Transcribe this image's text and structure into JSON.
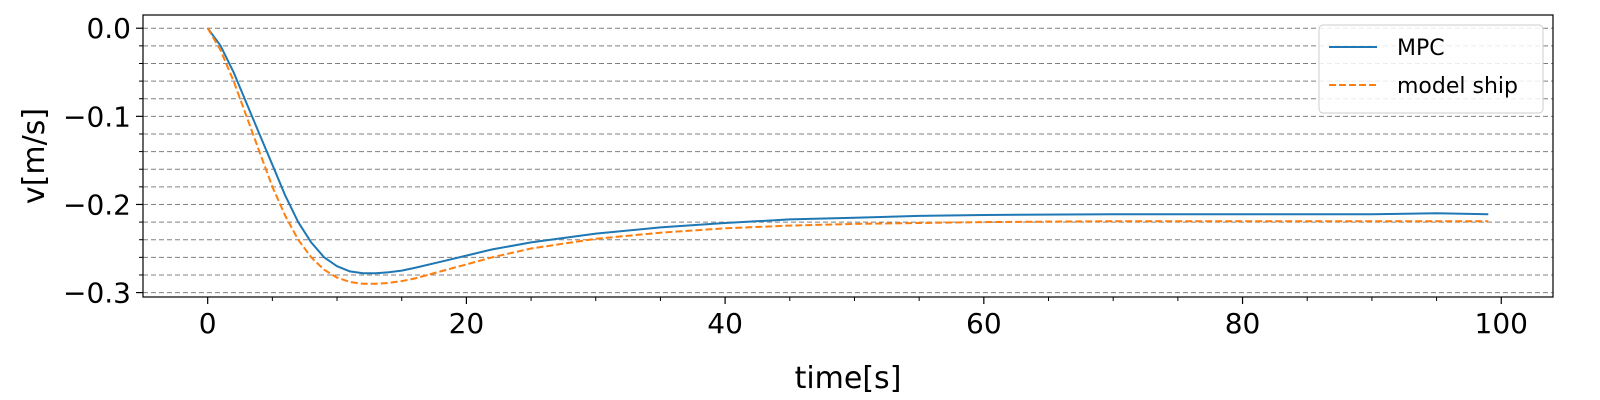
{
  "chart_data": {
    "type": "line",
    "title": "",
    "xlabel": "time[s]",
    "ylabel": "v[m/s]",
    "xlim": [
      -5,
      104
    ],
    "ylim": [
      -0.305,
      0.015
    ],
    "xticks": [
      0,
      20,
      40,
      60,
      80,
      100
    ],
    "xtick_labels": [
      "0",
      "20",
      "40",
      "60",
      "80",
      "100"
    ],
    "yticks": [
      0.0,
      -0.1,
      -0.2,
      -0.3
    ],
    "ytick_labels": [
      "0.0",
      "−0.1",
      "−0.2",
      "−0.3"
    ],
    "x_minor_ticks": [
      5,
      10,
      15,
      25,
      30,
      35,
      45,
      50,
      55,
      65,
      70,
      75,
      85,
      90,
      95
    ],
    "y_minor_ticks": [
      -0.02,
      -0.04,
      -0.06,
      -0.08,
      -0.12,
      -0.14,
      -0.16,
      -0.18,
      -0.22,
      -0.24,
      -0.26,
      -0.28
    ],
    "grid": "horizontal dashed at major and minor y ticks",
    "legend_position": "top-right",
    "series": [
      {
        "name": "MPC",
        "color": "#1f77b4",
        "style": "solid",
        "x": [
          0,
          1,
          2,
          3,
          4,
          5,
          6,
          7,
          8,
          9,
          10,
          11,
          12,
          13,
          14,
          15,
          16,
          18,
          20,
          22,
          25,
          30,
          35,
          40,
          45,
          50,
          55,
          60,
          70,
          80,
          90,
          95,
          99
        ],
        "y": [
          0.0,
          -0.02,
          -0.05,
          -0.085,
          -0.12,
          -0.155,
          -0.19,
          -0.22,
          -0.243,
          -0.26,
          -0.27,
          -0.276,
          -0.278,
          -0.278,
          -0.277,
          -0.275,
          -0.272,
          -0.265,
          -0.258,
          -0.251,
          -0.243,
          -0.233,
          -0.226,
          -0.221,
          -0.217,
          -0.215,
          -0.213,
          -0.212,
          -0.211,
          -0.211,
          -0.211,
          -0.21,
          -0.211
        ]
      },
      {
        "name": "model ship",
        "color": "#ff7f0e",
        "style": "dashed",
        "x": [
          0,
          1,
          2,
          3,
          4,
          5,
          6,
          7,
          8,
          9,
          10,
          11,
          12,
          13,
          14,
          15,
          16,
          18,
          20,
          22,
          25,
          30,
          35,
          40,
          45,
          50,
          55,
          60,
          70,
          80,
          90,
          95,
          99
        ],
        "y": [
          0.0,
          -0.025,
          -0.06,
          -0.1,
          -0.14,
          -0.18,
          -0.213,
          -0.24,
          -0.26,
          -0.274,
          -0.283,
          -0.288,
          -0.29,
          -0.29,
          -0.289,
          -0.287,
          -0.284,
          -0.276,
          -0.268,
          -0.26,
          -0.25,
          -0.239,
          -0.232,
          -0.227,
          -0.224,
          -0.222,
          -0.221,
          -0.22,
          -0.219,
          -0.219,
          -0.219,
          -0.219,
          -0.219
        ]
      }
    ]
  }
}
